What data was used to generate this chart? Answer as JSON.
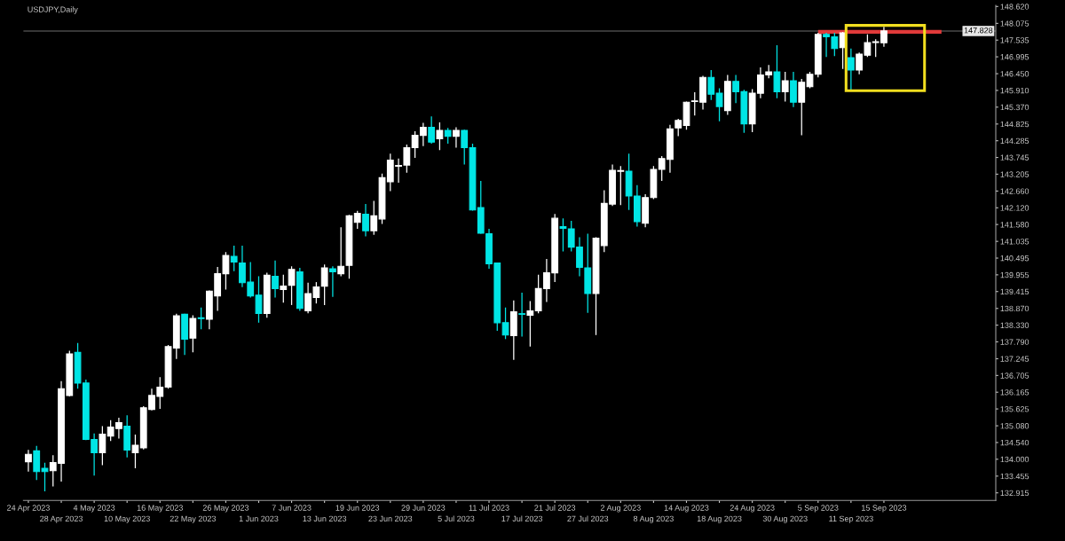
{
  "chart_data": {
    "type": "candlestick",
    "title": "USDJPY,Daily",
    "categories": [
      "24 Apr 2023",
      null,
      null,
      null,
      "28 Apr 2023",
      null,
      null,
      null,
      "4 May 2023",
      null,
      null,
      null,
      "10 May 2023",
      null,
      null,
      null,
      "16 May 2023",
      null,
      null,
      null,
      "22 May 2023",
      null,
      null,
      null,
      "26 May 2023",
      null,
      null,
      null,
      "1 Jun 2023",
      null,
      null,
      null,
      "7 Jun 2023",
      null,
      null,
      null,
      "13 Jun 2023",
      null,
      null,
      null,
      "19 Jun 2023",
      null,
      null,
      null,
      "23 Jun 2023",
      null,
      null,
      null,
      "29 Jun 2023",
      null,
      null,
      null,
      "5 Jul 2023",
      null,
      null,
      null,
      "11 Jul 2023",
      null,
      null,
      null,
      "17 Jul 2023",
      null,
      null,
      null,
      "21 Jul 2023",
      null,
      null,
      null,
      "27 Jul 2023",
      null,
      null,
      null,
      "2 Aug 2023",
      null,
      null,
      null,
      "8 Aug 2023",
      null,
      null,
      null,
      "14 Aug 2023",
      null,
      null,
      null,
      "18 Aug 2023",
      null,
      null,
      null,
      "24 Aug 2023",
      null,
      null,
      null,
      "30 Aug 2023",
      null,
      null,
      null,
      "5 Sep 2023",
      null,
      null,
      null,
      "11 Sep 2023",
      null,
      null,
      null,
      "15 Sep 2023",
      null,
      null,
      null,
      null,
      null,
      null,
      null,
      null,
      null,
      null,
      null,
      null,
      null
    ],
    "ohlc": [
      [
        133.92,
        134.3,
        133.6,
        134.16
      ],
      [
        134.27,
        134.43,
        133.33,
        133.6
      ],
      [
        133.71,
        133.89,
        132.96,
        133.6
      ],
      [
        133.63,
        134.13,
        133.12,
        133.89
      ],
      [
        133.87,
        136.52,
        133.28,
        136.28
      ],
      [
        136.06,
        137.5,
        136.03,
        137.4
      ],
      [
        137.45,
        137.75,
        136.28,
        136.46
      ],
      [
        136.46,
        136.57,
        134.62,
        134.64
      ],
      [
        134.64,
        134.83,
        133.47,
        134.21
      ],
      [
        134.21,
        135.07,
        133.81,
        134.81
      ],
      [
        134.75,
        135.26,
        134.59,
        135.04
      ],
      [
        134.99,
        135.34,
        134.67,
        135.18
      ],
      [
        135.07,
        135.42,
        134.06,
        134.3
      ],
      [
        134.21,
        134.8,
        133.71,
        134.45
      ],
      [
        134.37,
        135.71,
        134.32,
        135.66
      ],
      [
        135.61,
        136.28,
        135.58,
        136.06
      ],
      [
        136.03,
        136.65,
        135.63,
        136.33
      ],
      [
        136.33,
        137.69,
        136.28,
        137.64
      ],
      [
        137.59,
        138.7,
        137.24,
        138.63
      ],
      [
        138.68,
        138.7,
        137.37,
        137.88
      ],
      [
        137.91,
        138.65,
        137.45,
        138.55
      ],
      [
        138.57,
        138.9,
        138.2,
        138.54
      ],
      [
        138.52,
        139.45,
        138.2,
        139.43
      ],
      [
        139.27,
        140.21,
        138.79,
        139.99
      ],
      [
        139.99,
        140.69,
        139.48,
        140.58
      ],
      [
        140.55,
        140.9,
        140.07,
        140.37
      ],
      [
        140.34,
        140.9,
        139.56,
        139.7
      ],
      [
        139.72,
        140.37,
        139.22,
        139.27
      ],
      [
        139.3,
        139.91,
        138.41,
        138.71
      ],
      [
        138.71,
        140.02,
        138.57,
        139.94
      ],
      [
        139.91,
        140.42,
        139.22,
        139.51
      ],
      [
        139.48,
        139.96,
        139.06,
        139.59
      ],
      [
        139.62,
        140.23,
        138.98,
        140.13
      ],
      [
        140.05,
        140.18,
        138.79,
        138.87
      ],
      [
        138.79,
        139.7,
        138.71,
        139.35
      ],
      [
        139.22,
        139.72,
        139.03,
        139.56
      ],
      [
        139.59,
        140.29,
        138.98,
        140.18
      ],
      [
        140.15,
        140.23,
        139.24,
        140.05
      ],
      [
        139.99,
        141.49,
        139.91,
        140.23
      ],
      [
        140.26,
        141.89,
        139.83,
        141.86
      ],
      [
        141.65,
        142.02,
        141.44,
        141.94
      ],
      [
        141.91,
        142.24,
        141.2,
        141.38
      ],
      [
        141.38,
        142.34,
        141.25,
        141.86
      ],
      [
        141.76,
        143.22,
        141.6,
        143.09
      ],
      [
        142.96,
        143.87,
        142.66,
        143.66
      ],
      [
        143.46,
        143.71,
        142.93,
        143.49
      ],
      [
        143.5,
        144.16,
        143.25,
        144.06
      ],
      [
        144.06,
        144.59,
        143.73,
        144.46
      ],
      [
        144.46,
        144.86,
        144.11,
        144.72
      ],
      [
        144.72,
        145.07,
        144.19,
        144.24
      ],
      [
        144.35,
        144.88,
        143.98,
        144.62
      ],
      [
        144.62,
        144.7,
        144.19,
        144.43
      ],
      [
        144.43,
        144.72,
        144.06,
        144.62
      ],
      [
        144.62,
        144.64,
        143.52,
        144.06
      ],
      [
        144.06,
        144.19,
        142.03,
        142.05
      ],
      [
        142.13,
        142.99,
        141.28,
        141.3
      ],
      [
        141.28,
        141.44,
        140.15,
        140.31
      ],
      [
        140.34,
        140.34,
        138.15,
        138.41
      ],
      [
        138.41,
        138.9,
        137.88,
        138.01
      ],
      [
        137.99,
        139.13,
        137.21,
        138.76
      ],
      [
        138.7,
        139.38,
        137.96,
        138.68
      ],
      [
        138.65,
        139.11,
        137.64,
        138.79
      ],
      [
        138.79,
        139.96,
        138.71,
        139.51
      ],
      [
        139.51,
        140.47,
        139.08,
        140.02
      ],
      [
        140.02,
        141.92,
        139.72,
        141.78
      ],
      [
        141.51,
        141.78,
        140.71,
        141.46
      ],
      [
        141.44,
        141.7,
        140.71,
        140.85
      ],
      [
        140.85,
        141.17,
        139.91,
        140.2
      ],
      [
        140.18,
        141.28,
        138.73,
        139.35
      ],
      [
        139.35,
        141.17,
        138.01,
        141.14
      ],
      [
        140.9,
        142.69,
        140.69,
        142.26
      ],
      [
        142.24,
        143.52,
        142.18,
        143.33
      ],
      [
        143.3,
        143.47,
        142.21,
        143.32
      ],
      [
        143.3,
        143.87,
        142.05,
        142.5
      ],
      [
        142.5,
        142.85,
        141.51,
        141.67
      ],
      [
        141.62,
        142.56,
        141.49,
        142.45
      ],
      [
        142.45,
        143.47,
        142.4,
        143.36
      ],
      [
        143.36,
        143.79,
        142.99,
        143.71
      ],
      [
        143.68,
        144.8,
        143.25,
        144.67
      ],
      [
        144.7,
        144.99,
        144.43,
        144.94
      ],
      [
        144.78,
        145.55,
        144.64,
        145.53
      ],
      [
        145.55,
        145.85,
        145.1,
        145.57
      ],
      [
        145.53,
        146.38,
        145.29,
        146.33
      ],
      [
        146.33,
        146.57,
        145.6,
        145.79
      ],
      [
        145.82,
        145.98,
        144.91,
        145.39
      ],
      [
        145.26,
        146.41,
        145.12,
        146.2
      ],
      [
        146.2,
        146.41,
        145.5,
        145.87
      ],
      [
        145.87,
        145.93,
        144.54,
        144.83
      ],
      [
        144.83,
        145.95,
        144.56,
        145.82
      ],
      [
        145.82,
        146.65,
        145.66,
        146.41
      ],
      [
        146.41,
        146.73,
        146.3,
        146.51
      ],
      [
        146.51,
        147.37,
        145.66,
        145.87
      ],
      [
        145.87,
        146.51,
        145.55,
        146.22
      ],
      [
        146.22,
        146.51,
        145.37,
        145.53
      ],
      [
        145.53,
        146.28,
        144.46,
        146.17
      ],
      [
        146.03,
        146.51,
        145.98,
        146.43
      ],
      [
        146.43,
        147.77,
        146.33,
        147.72
      ],
      [
        147.72,
        147.77,
        146.99,
        147.64
      ],
      [
        147.64,
        147.77,
        147.02,
        147.26
      ],
      [
        147.29,
        147.8,
        146.6,
        147.77
      ],
      [
        146.97,
        147.26,
        145.93,
        146.57
      ],
      [
        146.57,
        147.13,
        146.43,
        147.08
      ],
      [
        147.05,
        147.72,
        146.99,
        147.45
      ],
      [
        147.46,
        147.56,
        146.99,
        147.48
      ],
      [
        147.45,
        147.96,
        147.32,
        147.83
      ],
      null,
      null,
      null,
      null,
      null,
      null,
      null,
      null,
      null,
      null,
      null,
      null,
      null
    ],
    "colors": [
      "#ffffff",
      "#00e5e5",
      "#00e5e5",
      "#ffffff",
      "#ffffff",
      "#ffffff",
      "#00e5e5",
      "#00e5e5",
      "#00e5e5",
      "#ffffff",
      "#ffffff",
      "#ffffff",
      "#00e5e5",
      "#ffffff",
      "#ffffff",
      "#ffffff",
      "#ffffff",
      "#ffffff",
      "#ffffff",
      "#00e5e5",
      "#ffffff",
      "#00e5e5",
      "#ffffff",
      "#ffffff",
      "#ffffff",
      "#00e5e5",
      "#00e5e5",
      "#00e5e5",
      "#00e5e5",
      "#ffffff",
      "#00e5e5",
      "#ffffff",
      "#ffffff",
      "#00e5e5",
      "#ffffff",
      "#ffffff",
      "#ffffff",
      "#00e5e5",
      "#ffffff",
      "#ffffff",
      "#ffffff",
      "#00e5e5",
      "#ffffff",
      "#ffffff",
      "#ffffff",
      "#ffffff",
      "#ffffff",
      "#ffffff",
      "#ffffff",
      "#00e5e5",
      "#ffffff",
      "#00e5e5",
      "#ffffff",
      "#00e5e5",
      "#00e5e5",
      "#00e5e5",
      "#00e5e5",
      "#00e5e5",
      "#00e5e5",
      "#ffffff",
      "#00e5e5",
      "#ffffff",
      "#ffffff",
      "#ffffff",
      "#ffffff",
      "#00e5e5",
      "#00e5e5",
      "#00e5e5",
      "#00e5e5",
      "#ffffff",
      "#ffffff",
      "#ffffff",
      "#ffffff",
      "#00e5e5",
      "#00e5e5",
      "#ffffff",
      "#ffffff",
      "#ffffff",
      "#ffffff",
      "#ffffff",
      "#ffffff",
      "#ffffff",
      "#ffffff",
      "#00e5e5",
      "#00e5e5",
      "#ffffff",
      "#00e5e5",
      "#00e5e5",
      "#ffffff",
      "#ffffff",
      "#ffffff",
      "#00e5e5",
      "#ffffff",
      "#00e5e5",
      "#ffffff",
      "#ffffff",
      "#ffffff",
      "#00e5e5",
      "#00e5e5",
      "#ffffff",
      "#00e5e5",
      "#ffffff",
      "#ffffff",
      "#ffffff",
      "#ffffff",
      null,
      null,
      null,
      null,
      null,
      null,
      null,
      null,
      null,
      null,
      null,
      null,
      null
    ],
    "series": [
      {
        "type": "line",
        "color": "#e03a3a",
        "values": [
          null,
          null,
          null,
          null,
          null,
          null,
          null,
          null,
          null,
          null,
          null,
          null,
          null,
          null,
          null,
          null,
          null,
          null,
          null,
          null,
          null,
          null,
          null,
          null,
          null,
          null,
          null,
          null,
          null,
          null,
          null,
          null,
          null,
          null,
          null,
          null,
          null,
          null,
          null,
          null,
          null,
          null,
          null,
          null,
          null,
          null,
          null,
          null,
          null,
          null,
          null,
          null,
          null,
          null,
          null,
          null,
          null,
          null,
          null,
          null,
          null,
          null,
          null,
          null,
          null,
          null,
          null,
          null,
          null,
          null,
          null,
          null,
          null,
          null,
          null,
          null,
          null,
          null,
          null,
          null,
          null,
          null,
          null,
          null,
          null,
          null,
          null,
          null,
          null,
          null,
          null,
          null,
          null,
          null,
          null,
          null,
          147.8,
          147.8,
          147.8,
          147.8,
          147.8,
          147.8,
          147.8,
          147.8,
          147.8,
          147.8,
          147.8,
          147.8,
          147.8,
          147.8,
          147.8,
          147.8,
          null,
          null,
          null,
          null,
          null,
          null
        ]
      }
    ],
    "ylim": [
      132.67,
      148.655
    ],
    "yticks": [
      {
        "value": 148.62,
        "label": "148.620"
      },
      148.075,
      147.535,
      146.995,
      {
        "value": 146.45,
        "label": "146.450"
      },
      {
        "value": 145.91,
        "label": "145.910"
      },
      {
        "value": 145.37,
        "label": "145.370"
      },
      144.825,
      144.285,
      143.745,
      143.205,
      {
        "value": 142.66,
        "label": "142.660"
      },
      {
        "value": 142.12,
        "label": "142.120"
      },
      {
        "value": 141.58,
        "label": "141.580"
      },
      141.035,
      140.495,
      139.955,
      139.415,
      {
        "value": 138.87,
        "label": "138.870"
      },
      {
        "value": 138.33,
        "label": "138.330"
      },
      {
        "value": 137.79,
        "label": "137.790"
      },
      137.245,
      136.705,
      136.165,
      135.625,
      {
        "value": 135.08,
        "label": "135.080"
      },
      {
        "value": 134.54,
        "label": "134.540"
      },
      {
        "value": 134,
        "label": "134.000"
      },
      133.455,
      132.915
    ],
    "ref_lines": [
      {
        "axis": "y",
        "value": 147.828,
        "label": "147.828",
        "color": "#6e6e6e"
      }
    ],
    "grid": false,
    "legend": false
  }
}
